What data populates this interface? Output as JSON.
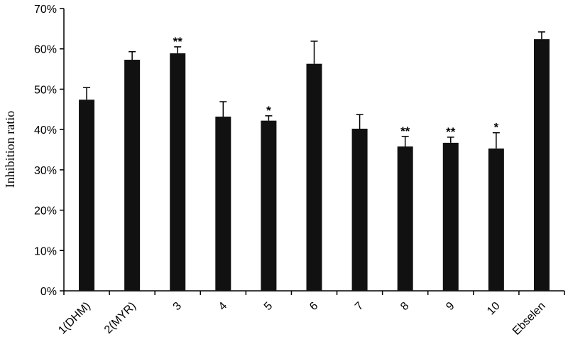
{
  "chart_data": {
    "type": "bar",
    "y_label": "Inhibition ratio",
    "categories": [
      "1(DHM)",
      "2(MYR)",
      "3",
      "4",
      "5",
      "6",
      "7",
      "8",
      "9",
      "10",
      "Ebselen"
    ],
    "values": [
      47.4,
      57.3,
      58.9,
      43.2,
      42.2,
      56.3,
      40.2,
      35.8,
      36.7,
      35.3,
      62.4
    ],
    "errors": [
      3.0,
      2.0,
      1.6,
      3.7,
      1.2,
      5.6,
      3.5,
      2.5,
      1.4,
      3.9,
      1.8
    ],
    "annotations": [
      null,
      null,
      "**",
      null,
      "*",
      null,
      null,
      "**",
      "**",
      "*",
      null
    ],
    "color": "#111111",
    "ylim": [
      0,
      70
    ],
    "yticks": [
      {
        "value": 0,
        "label": "0%"
      },
      {
        "value": 10,
        "label": "10%"
      },
      {
        "value": 20,
        "label": "20%"
      },
      {
        "value": 30,
        "label": "30%"
      },
      {
        "value": 40,
        "label": "40%"
      },
      {
        "value": 50,
        "label": "50%"
      },
      {
        "value": 60,
        "label": "60%"
      },
      {
        "value": 70,
        "label": "70%"
      }
    ]
  }
}
